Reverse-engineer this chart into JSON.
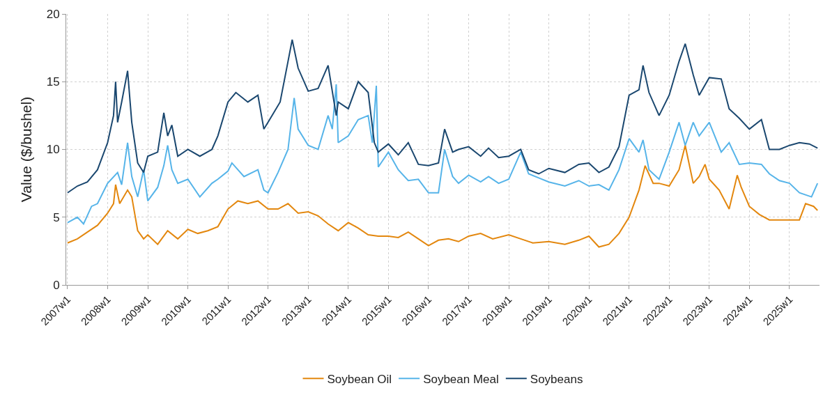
{
  "chart_data": {
    "type": "line",
    "ylabel": "Value ($/bushel)",
    "xlim": [
      "2006-12-20",
      "2025-10-01"
    ],
    "ylim": [
      0,
      20
    ],
    "xticks": [
      {
        "value": "2007-01-01",
        "label": "2007w1"
      },
      {
        "value": "2008-01-01",
        "label": "2008w1"
      },
      {
        "value": "2009-01-01",
        "label": "2009w1"
      },
      {
        "value": "2010-01-01",
        "label": "2010w1"
      },
      {
        "value": "2011-01-01",
        "label": "2011w1"
      },
      {
        "value": "2012-01-01",
        "label": "2012w1"
      },
      {
        "value": "2013-01-01",
        "label": "2013w1"
      },
      {
        "value": "2014-01-01",
        "label": "2014w1"
      },
      {
        "value": "2015-01-01",
        "label": "2015w1"
      },
      {
        "value": "2016-01-01",
        "label": "2016w1"
      },
      {
        "value": "2017-01-01",
        "label": "2017w1"
      },
      {
        "value": "2018-01-01",
        "label": "2018w1"
      },
      {
        "value": "2019-01-01",
        "label": "2019w1"
      },
      {
        "value": "2020-01-01",
        "label": "2020w1"
      },
      {
        "value": "2021-01-01",
        "label": "2021w1"
      },
      {
        "value": "2022-01-01",
        "label": "2022w1"
      },
      {
        "value": "2023-01-01",
        "label": "2023w1"
      },
      {
        "value": "2024-01-01",
        "label": "2024w1"
      },
      {
        "value": "2025-01-01",
        "label": "2025w1"
      }
    ],
    "yticks": [
      0,
      5,
      10,
      15,
      20
    ],
    "grid": true,
    "legend": "bottom",
    "line_style": "solid",
    "series": [
      {
        "name": "Soybean Oil",
        "color": "#e3870e",
        "x": [
          "2007-01-01",
          "2007-04-01",
          "2007-07-01",
          "2007-10-01",
          "2008-01-01",
          "2008-02-24",
          "2008-03-14",
          "2008-04-20",
          "2008-07-01",
          "2008-08-08",
          "2008-10-01",
          "2008-11-24",
          "2009-01-01",
          "2009-04-01",
          "2009-07-01",
          "2009-10-01",
          "2010-01-01",
          "2010-04-01",
          "2010-07-01",
          "2010-10-01",
          "2011-01-01",
          "2011-04-01",
          "2011-07-01",
          "2011-10-01",
          "2012-01-01",
          "2012-04-01",
          "2012-07-01",
          "2012-10-01",
          "2013-01-01",
          "2013-04-01",
          "2013-07-01",
          "2013-10-01",
          "2014-01-01",
          "2014-04-01",
          "2014-07-01",
          "2014-10-01",
          "2015-01-01",
          "2015-04-01",
          "2015-07-01",
          "2015-10-01",
          "2016-01-01",
          "2016-04-01",
          "2016-07-01",
          "2016-10-01",
          "2017-01-01",
          "2017-04-20",
          "2017-08-08",
          "2018-01-01",
          "2018-04-20",
          "2018-08-08",
          "2019-01-01",
          "2019-05-27",
          "2019-10-01",
          "2020-01-01",
          "2020-04-01",
          "2020-07-01",
          "2020-10-01",
          "2021-01-01",
          "2021-04-01",
          "2021-05-27",
          "2021-08-08",
          "2021-10-01",
          "2022-01-01",
          "2022-04-01",
          "2022-05-27",
          "2022-08-08",
          "2022-10-01",
          "2022-11-24",
          "2023-01-01",
          "2023-04-01",
          "2023-07-01",
          "2023-09-13",
          "2023-10-19",
          "2024-01-01",
          "2024-04-01",
          "2024-07-01",
          "2024-10-01",
          "2025-01-01",
          "2025-04-01",
          "2025-05-27",
          "2025-08-08",
          "2025-09-13"
        ],
        "values": [
          3.1,
          3.4,
          3.9,
          4.4,
          5.3,
          6.0,
          7.4,
          6.0,
          7.0,
          6.5,
          4.0,
          3.4,
          3.7,
          3.0,
          4.0,
          3.4,
          4.1,
          3.8,
          4.0,
          4.3,
          5.6,
          6.2,
          6.0,
          6.2,
          5.6,
          5.6,
          6.0,
          5.3,
          5.4,
          5.1,
          4.5,
          4.0,
          4.6,
          4.2,
          3.7,
          3.6,
          3.6,
          3.5,
          3.9,
          3.4,
          2.9,
          3.3,
          3.4,
          3.2,
          3.6,
          3.8,
          3.4,
          3.7,
          3.4,
          3.1,
          3.2,
          3.0,
          3.3,
          3.6,
          2.8,
          3.0,
          3.8,
          5.0,
          7.0,
          8.8,
          7.5,
          7.5,
          7.3,
          8.5,
          10.3,
          7.5,
          8.0,
          8.9,
          7.8,
          7.0,
          5.6,
          8.1,
          7.2,
          5.8,
          5.2,
          4.8,
          4.8,
          4.8,
          4.8,
          6.0,
          5.8,
          5.5
        ]
      },
      {
        "name": "Soybean Meal",
        "color": "#56b4e9",
        "x": [
          "2007-01-01",
          "2007-04-01",
          "2007-05-27",
          "2007-08-08",
          "2007-10-01",
          "2008-01-01",
          "2008-04-01",
          "2008-05-08",
          "2008-07-01",
          "2008-08-08",
          "2008-10-01",
          "2008-11-24",
          "2009-01-01",
          "2009-04-01",
          "2009-05-27",
          "2009-07-01",
          "2009-08-08",
          "2009-10-01",
          "2010-01-01",
          "2010-04-20",
          "2010-08-08",
          "2010-10-01",
          "2011-01-01",
          "2011-02-06",
          "2011-05-27",
          "2011-10-01",
          "2011-11-24",
          "2012-01-01",
          "2012-04-01",
          "2012-07-01",
          "2012-08-26",
          "2012-10-01",
          "2013-01-01",
          "2013-04-01",
          "2013-07-01",
          "2013-08-08",
          "2013-09-13",
          "2013-10-01",
          "2014-01-01",
          "2014-04-01",
          "2014-07-01",
          "2014-08-08",
          "2014-09-13",
          "2014-10-01",
          "2015-01-01",
          "2015-04-01",
          "2015-07-01",
          "2015-10-01",
          "2016-01-01",
          "2016-04-01",
          "2016-05-27",
          "2016-08-08",
          "2016-10-01",
          "2017-01-01",
          "2017-04-20",
          "2017-07-01",
          "2017-10-01",
          "2018-01-01",
          "2018-04-20",
          "2018-07-01",
          "2018-10-01",
          "2019-01-01",
          "2019-05-27",
          "2019-10-01",
          "2020-01-01",
          "2020-04-01",
          "2020-07-01",
          "2020-10-01",
          "2021-01-01",
          "2021-04-01",
          "2021-05-08",
          "2021-07-01",
          "2021-10-01",
          "2022-01-01",
          "2022-04-01",
          "2022-05-27",
          "2022-08-08",
          "2022-10-01",
          "2023-01-01",
          "2023-04-20",
          "2023-07-01",
          "2023-10-01",
          "2024-01-01",
          "2024-04-20",
          "2024-07-01",
          "2024-10-01",
          "2025-01-01",
          "2025-04-01",
          "2025-07-20",
          "2025-09-13"
        ],
        "values": [
          4.6,
          5.0,
          4.5,
          5.8,
          6.0,
          7.5,
          8.3,
          7.4,
          10.5,
          8.0,
          6.5,
          8.5,
          6.2,
          7.2,
          8.8,
          10.3,
          8.5,
          7.5,
          7.8,
          6.5,
          7.5,
          7.8,
          8.4,
          9.0,
          8.0,
          8.5,
          7.0,
          6.8,
          8.3,
          10.0,
          13.8,
          11.5,
          10.3,
          10.0,
          12.5,
          11.5,
          14.8,
          10.5,
          11.0,
          12.2,
          12.5,
          10.5,
          14.7,
          8.7,
          9.8,
          8.5,
          7.7,
          7.8,
          6.8,
          6.8,
          10.0,
          8.0,
          7.5,
          8.1,
          7.6,
          8.0,
          7.5,
          7.8,
          9.8,
          8.2,
          7.9,
          7.6,
          7.3,
          7.7,
          7.3,
          7.4,
          7.0,
          8.5,
          10.8,
          9.8,
          10.7,
          8.5,
          7.8,
          9.8,
          12.0,
          10.3,
          12.0,
          11.0,
          12.0,
          9.8,
          10.5,
          8.9,
          9.0,
          8.9,
          8.2,
          7.7,
          7.5,
          6.8,
          6.5,
          7.5
        ]
      },
      {
        "name": "Soybeans",
        "color": "#1a476f",
        "x": [
          "2007-01-01",
          "2007-04-01",
          "2007-07-01",
          "2007-10-01",
          "2008-01-01",
          "2008-02-24",
          "2008-03-14",
          "2008-04-01",
          "2008-05-08",
          "2008-07-01",
          "2008-08-08",
          "2008-10-01",
          "2008-11-24",
          "2009-01-01",
          "2009-04-01",
          "2009-05-27",
          "2009-07-01",
          "2009-08-08",
          "2009-10-01",
          "2010-01-01",
          "2010-04-20",
          "2010-08-08",
          "2010-10-01",
          "2011-01-01",
          "2011-03-14",
          "2011-07-01",
          "2011-10-01",
          "2011-11-24",
          "2012-01-01",
          "2012-04-20",
          "2012-07-01",
          "2012-08-08",
          "2012-10-01",
          "2013-01-01",
          "2013-04-01",
          "2013-07-01",
          "2013-09-13",
          "2013-10-01",
          "2014-01-01",
          "2014-04-01",
          "2014-07-01",
          "2014-08-26",
          "2014-10-01",
          "2015-01-01",
          "2015-04-01",
          "2015-07-01",
          "2015-10-01",
          "2016-01-01",
          "2016-04-01",
          "2016-05-27",
          "2016-08-08",
          "2016-10-01",
          "2017-01-01",
          "2017-04-20",
          "2017-07-01",
          "2017-10-01",
          "2018-01-01",
          "2018-04-20",
          "2018-07-01",
          "2018-10-01",
          "2019-01-01",
          "2019-05-27",
          "2019-10-01",
          "2020-01-01",
          "2020-04-01",
          "2020-07-01",
          "2020-10-01",
          "2021-01-01",
          "2021-04-01",
          "2021-05-08",
          "2021-07-01",
          "2021-10-01",
          "2022-01-01",
          "2022-04-01",
          "2022-05-27",
          "2022-08-08",
          "2022-10-01",
          "2023-01-01",
          "2023-04-20",
          "2023-07-01",
          "2023-10-01",
          "2024-01-01",
          "2024-04-20",
          "2024-07-01",
          "2024-10-01",
          "2025-01-01",
          "2025-04-01",
          "2025-07-01",
          "2025-09-13"
        ],
        "values": [
          6.8,
          7.3,
          7.6,
          8.5,
          10.5,
          12.5,
          15.0,
          12.0,
          13.5,
          15.8,
          12.0,
          9.0,
          8.3,
          9.5,
          9.8,
          12.7,
          11.0,
          11.8,
          9.5,
          10.0,
          9.5,
          10.0,
          11.0,
          13.5,
          14.2,
          13.5,
          14.0,
          11.5,
          12.0,
          13.5,
          16.5,
          18.1,
          16.0,
          14.3,
          14.5,
          16.2,
          12.5,
          13.5,
          13.0,
          15.0,
          14.2,
          10.5,
          9.8,
          10.4,
          9.6,
          10.5,
          8.9,
          8.8,
          9.0,
          11.5,
          9.8,
          10.0,
          10.2,
          9.5,
          10.1,
          9.4,
          9.5,
          10.0,
          8.5,
          8.2,
          8.6,
          8.3,
          8.9,
          9.0,
          8.3,
          8.7,
          10.2,
          14.0,
          14.4,
          16.2,
          14.2,
          12.5,
          14.0,
          16.5,
          17.8,
          15.5,
          14.0,
          15.3,
          15.2,
          13.0,
          12.3,
          11.5,
          12.2,
          10.0,
          10.0,
          10.3,
          10.5,
          10.4,
          10.1
        ]
      }
    ]
  }
}
